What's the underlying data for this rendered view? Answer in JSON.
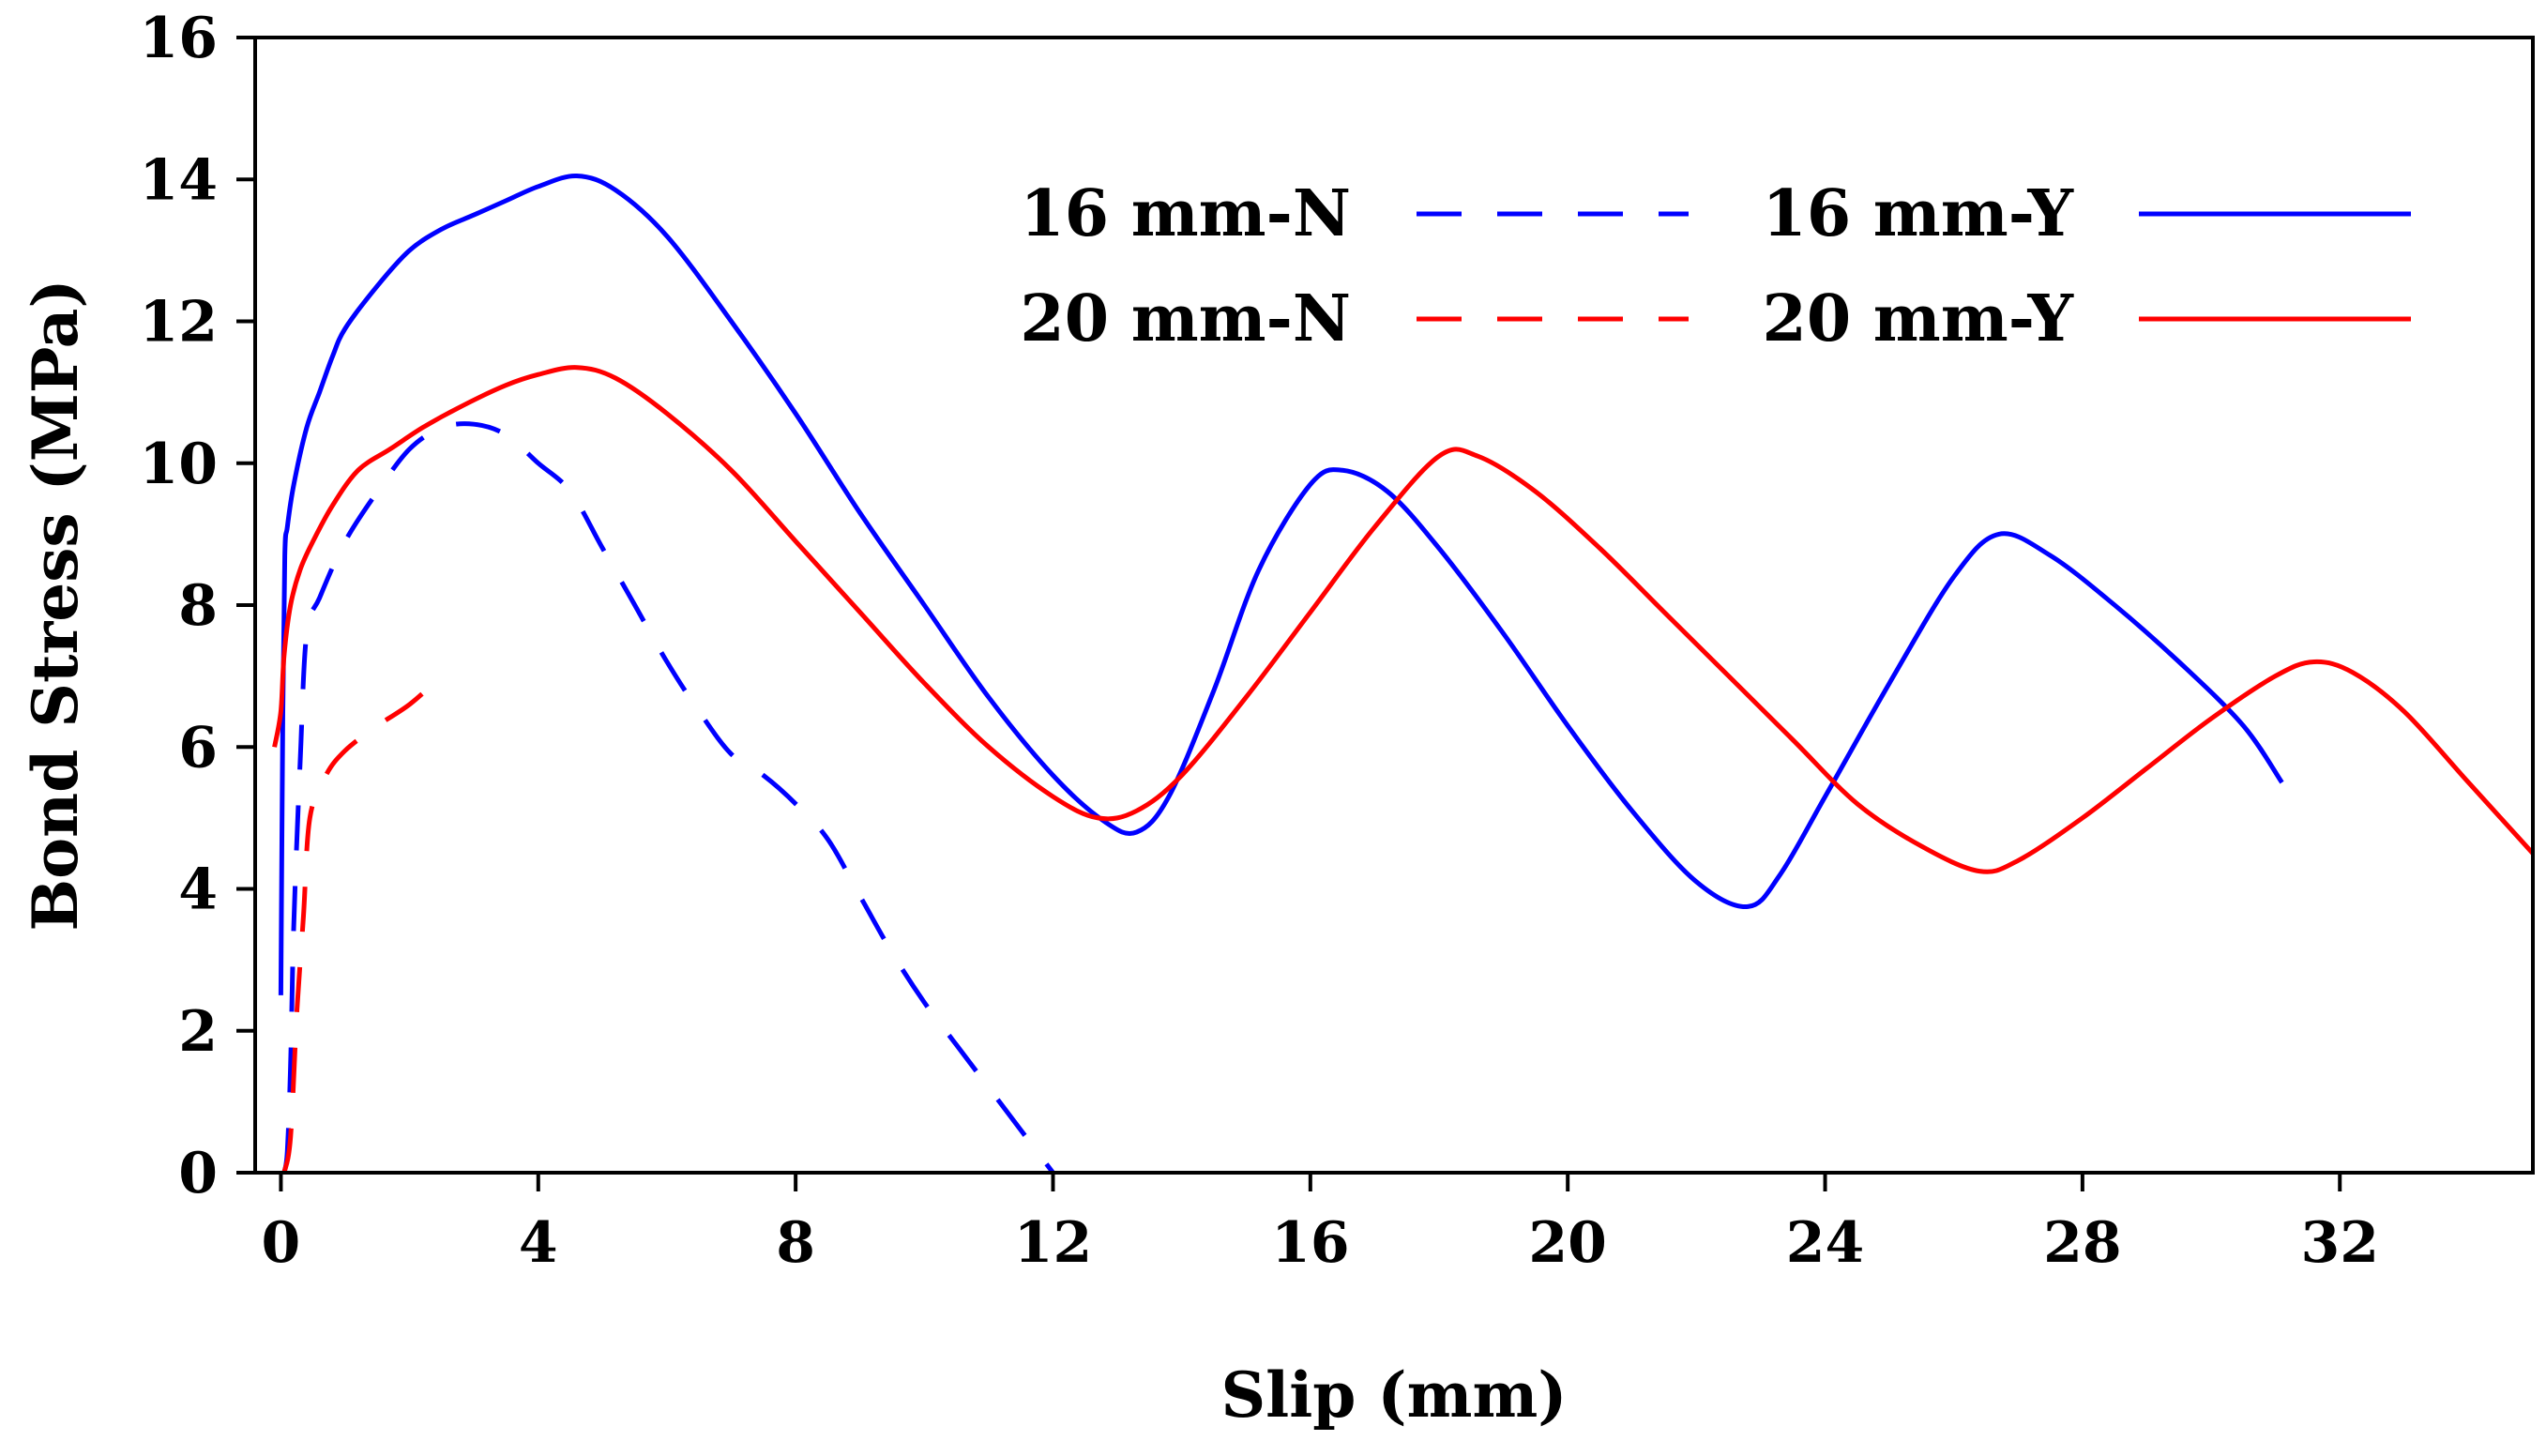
{
  "chart_data": {
    "type": "line",
    "title": "",
    "xlabel": "Slip (mm)",
    "ylabel": "Bond Stress (MPa)",
    "xlim": [
      -0.4,
      35
    ],
    "ylim": [
      0,
      16
    ],
    "xticks": [
      0,
      4,
      8,
      12,
      16,
      20,
      24,
      28,
      32
    ],
    "yticks": [
      0,
      2,
      4,
      6,
      8,
      10,
      12,
      14,
      16
    ],
    "legend_position": "top-right",
    "series": [
      {
        "name": "16 mm-N",
        "color": "#0000ff",
        "dash": "dashed",
        "x": [
          0.05,
          0.1,
          0.15,
          0.2,
          0.3,
          0.4,
          0.6,
          1.0,
          1.5,
          2.0,
          2.5,
          3.0,
          3.5,
          4.0,
          4.5,
          5.0,
          5.5,
          6.0,
          6.5,
          7.0,
          7.5,
          8.0,
          8.5,
          9.0,
          9.5,
          10.0,
          10.5,
          11.0,
          11.5,
          12.0
        ],
        "y": [
          0.0,
          0.3,
          1.5,
          3.5,
          5.8,
          7.6,
          8.1,
          8.9,
          9.6,
          10.2,
          10.5,
          10.55,
          10.4,
          10.0,
          9.6,
          8.8,
          8.0,
          7.2,
          6.5,
          5.9,
          5.6,
          5.2,
          4.7,
          3.9,
          3.1,
          2.4,
          1.8,
          1.2,
          0.6,
          0.0
        ]
      },
      {
        "name": "20 mm-N",
        "color": "#ff0000",
        "dash": "dashed",
        "x": [
          0.05,
          0.15,
          0.25,
          0.35,
          0.45,
          0.7,
          1.0,
          1.5,
          2.0,
          2.5
        ],
        "y": [
          0.0,
          0.5,
          2.3,
          3.6,
          5.0,
          5.6,
          5.95,
          6.3,
          6.6,
          7.0
        ]
      },
      {
        "name": "16 mm-Y",
        "color": "#0000ff",
        "dash": "solid",
        "x": [
          0.0,
          0.03,
          0.06,
          0.1,
          0.2,
          0.4,
          0.6,
          0.8,
          1.0,
          1.5,
          2.0,
          2.5,
          3.0,
          3.5,
          4.0,
          4.6,
          5.2,
          6.0,
          7.0,
          8.0,
          9.0,
          10.0,
          11.0,
          12.0,
          12.8,
          13.3,
          13.8,
          14.5,
          15.2,
          16.0,
          16.5,
          17.2,
          18.0,
          19.0,
          20.0,
          21.0,
          22.0,
          22.8,
          23.3,
          24.0,
          25.0,
          26.0,
          26.7,
          27.5,
          28.5,
          29.5,
          30.5,
          31.1
        ],
        "y": [
          2.5,
          6.5,
          8.7,
          9.1,
          9.7,
          10.5,
          11.0,
          11.5,
          11.9,
          12.5,
          13.0,
          13.3,
          13.5,
          13.7,
          13.9,
          14.05,
          13.85,
          13.2,
          12.0,
          10.7,
          9.3,
          8.0,
          6.7,
          5.6,
          4.95,
          4.8,
          5.3,
          6.8,
          8.5,
          9.7,
          9.9,
          9.6,
          8.8,
          7.6,
          6.3,
          5.1,
          4.1,
          3.75,
          4.2,
          5.3,
          6.9,
          8.4,
          9.0,
          8.7,
          8.0,
          7.2,
          6.3,
          5.5
        ]
      },
      {
        "name": "20 mm-Y",
        "color": "#ff0000",
        "dash": "solid",
        "x": [
          -0.1,
          0.0,
          0.05,
          0.15,
          0.3,
          0.5,
          0.8,
          1.2,
          1.7,
          2.2,
          2.8,
          3.5,
          4.0,
          4.6,
          5.2,
          6.0,
          7.0,
          8.0,
          9.0,
          10.0,
          11.0,
          12.0,
          12.7,
          13.3,
          14.0,
          15.0,
          16.0,
          17.0,
          18.0,
          18.6,
          19.5,
          20.5,
          21.5,
          22.5,
          23.5,
          24.5,
          25.5,
          26.4,
          27.0,
          28.0,
          29.0,
          30.0,
          31.0,
          31.6,
          32.2,
          33.0,
          34.0,
          35.0
        ],
        "y": [
          6.0,
          6.5,
          7.3,
          8.0,
          8.5,
          8.9,
          9.4,
          9.9,
          10.2,
          10.5,
          10.8,
          11.1,
          11.25,
          11.35,
          11.2,
          10.7,
          9.9,
          8.9,
          7.9,
          6.9,
          6.0,
          5.3,
          5.0,
          5.1,
          5.6,
          6.7,
          7.9,
          9.1,
          10.1,
          10.1,
          9.6,
          8.8,
          7.9,
          7.0,
          6.1,
          5.2,
          4.6,
          4.25,
          4.4,
          5.0,
          5.7,
          6.4,
          7.0,
          7.2,
          7.05,
          6.5,
          5.5,
          4.5
        ]
      }
    ]
  }
}
